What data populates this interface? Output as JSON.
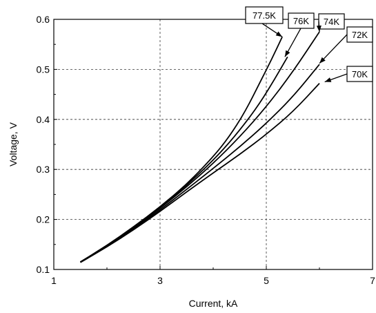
{
  "chart_data": {
    "type": "line",
    "title": "",
    "xlabel": "Current, kA",
    "ylabel": "Voltage, V",
    "xlim": [
      1,
      7
    ],
    "ylim": [
      0.1,
      0.6
    ],
    "xticks": [
      "1",
      "3",
      "5",
      "7"
    ],
    "yticks": [
      "0.1",
      "0.2",
      "0.3",
      "0.4",
      "0.5",
      "0.6"
    ],
    "grid": true,
    "series": [
      {
        "name": "77.5K",
        "x": [
          1.5,
          2.0,
          2.5,
          3.0,
          3.5,
          4.0,
          4.3,
          4.6,
          4.9,
          5.1,
          5.3
        ],
        "y": [
          0.115,
          0.148,
          0.185,
          0.225,
          0.27,
          0.325,
          0.365,
          0.415,
          0.478,
          0.52,
          0.565
        ]
      },
      {
        "name": "76K",
        "x": [
          1.5,
          2.0,
          2.5,
          3.0,
          3.5,
          4.0,
          4.4,
          4.8,
          5.1,
          5.4
        ],
        "y": [
          0.115,
          0.147,
          0.184,
          0.224,
          0.268,
          0.318,
          0.365,
          0.42,
          0.47,
          0.525
        ]
      },
      {
        "name": "74K",
        "x": [
          1.5,
          2.0,
          2.5,
          3.0,
          3.5,
          4.0,
          4.5,
          5.0,
          5.5,
          6.0
        ],
        "y": [
          0.115,
          0.147,
          0.183,
          0.222,
          0.265,
          0.312,
          0.365,
          0.425,
          0.495,
          0.575
        ]
      },
      {
        "name": "72K",
        "x": [
          1.5,
          2.0,
          2.5,
          3.0,
          3.5,
          4.0,
          4.5,
          5.0,
          5.5,
          6.0
        ],
        "y": [
          0.115,
          0.146,
          0.181,
          0.219,
          0.26,
          0.302,
          0.345,
          0.392,
          0.445,
          0.51
        ]
      },
      {
        "name": "70K",
        "x": [
          1.5,
          2.0,
          2.5,
          3.0,
          3.5,
          4.0,
          4.5,
          5.0,
          5.5,
          6.0
        ],
        "y": [
          0.114,
          0.145,
          0.179,
          0.216,
          0.255,
          0.293,
          0.33,
          0.37,
          0.415,
          0.472
        ]
      }
    ],
    "annotations": [
      {
        "label": "77.5K",
        "points_to": [
          5.3,
          0.565
        ]
      },
      {
        "label": "76K",
        "points_to": [
          5.35,
          0.525
        ]
      },
      {
        "label": "74K",
        "points_to": [
          6.0,
          0.575
        ]
      },
      {
        "label": "72K",
        "points_to": [
          6.0,
          0.512
        ]
      },
      {
        "label": "70K",
        "points_to": [
          6.1,
          0.475
        ]
      }
    ]
  }
}
